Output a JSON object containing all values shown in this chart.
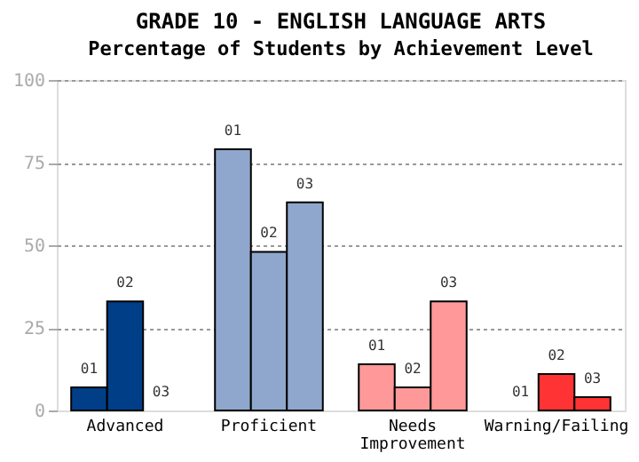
{
  "chart_data": {
    "type": "bar",
    "title": "GRADE 10 - ENGLISH LANGUAGE ARTS",
    "subtitle": "Percentage of Students by Achievement Level",
    "categories": [
      "Advanced",
      "Proficient",
      "Needs Improvement",
      "Warning/Failing"
    ],
    "series": [
      {
        "name": "01",
        "colors": [
          "#003f87",
          "#8fa7cc",
          "#ff9999",
          "#ff3333"
        ],
        "values": [
          7,
          79,
          14,
          0
        ]
      },
      {
        "name": "02",
        "colors": [
          "#003f87",
          "#8fa7cc",
          "#ff9999",
          "#ff3333"
        ],
        "values": [
          33,
          48,
          7,
          11
        ]
      },
      {
        "name": "03",
        "colors": [
          "#003f87",
          "#8fa7cc",
          "#ff9999",
          "#ff3333"
        ],
        "values": [
          0,
          63,
          33,
          4
        ]
      }
    ],
    "ylim": [
      0,
      100
    ],
    "yticks": [
      0,
      25,
      50,
      75,
      100
    ],
    "grid": "y"
  }
}
